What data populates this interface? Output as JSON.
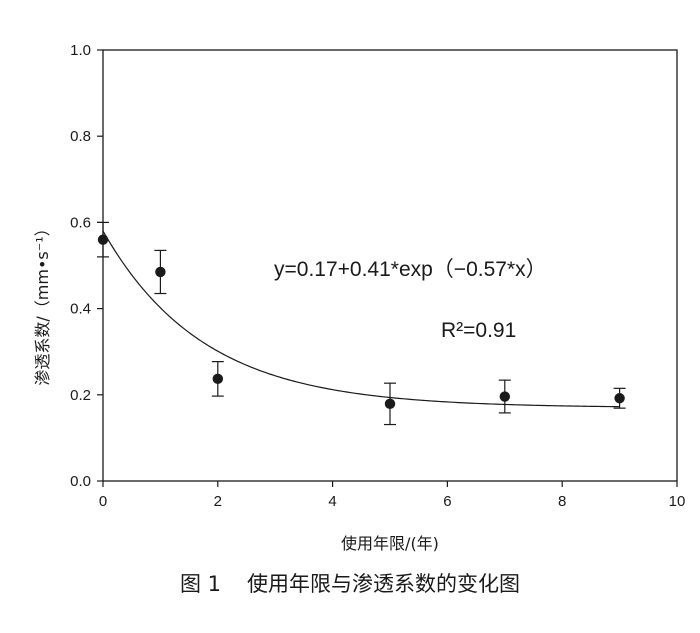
{
  "chart_data": {
    "type": "scatter",
    "xlabel": "使用年限/(年)",
    "ylabel": "渗透系数/（mm•s⁻¹）",
    "xlim": [
      0,
      10
    ],
    "ylim": [
      0.0,
      1.0
    ],
    "xticks": [
      "0",
      "2",
      "4",
      "6",
      "8",
      "10"
    ],
    "yticks": [
      "0.0",
      "0.2",
      "0.4",
      "0.6",
      "0.8",
      "1.0"
    ],
    "grid": false,
    "points": [
      {
        "x": 0,
        "y": 0.56,
        "err": 0.04
      },
      {
        "x": 1,
        "y": 0.485,
        "err": 0.05
      },
      {
        "x": 2,
        "y": 0.237,
        "err": 0.04
      },
      {
        "x": 5,
        "y": 0.179,
        "err": 0.048
      },
      {
        "x": 7,
        "y": 0.196,
        "err": 0.038
      },
      {
        "x": 9,
        "y": 0.192,
        "err": 0.023
      }
    ],
    "fit": {
      "a": 0.17,
      "b": 0.41,
      "c": -0.57
    },
    "equation": "y=0.17+0.41*exp（−0.57*x）",
    "r2_label": "R²=0.91"
  },
  "caption": {
    "number": "图 1",
    "text": "使用年限与渗透系数的变化图"
  },
  "colors": {
    "ink": "#1a1a1a",
    "background": "#ffffff"
  }
}
